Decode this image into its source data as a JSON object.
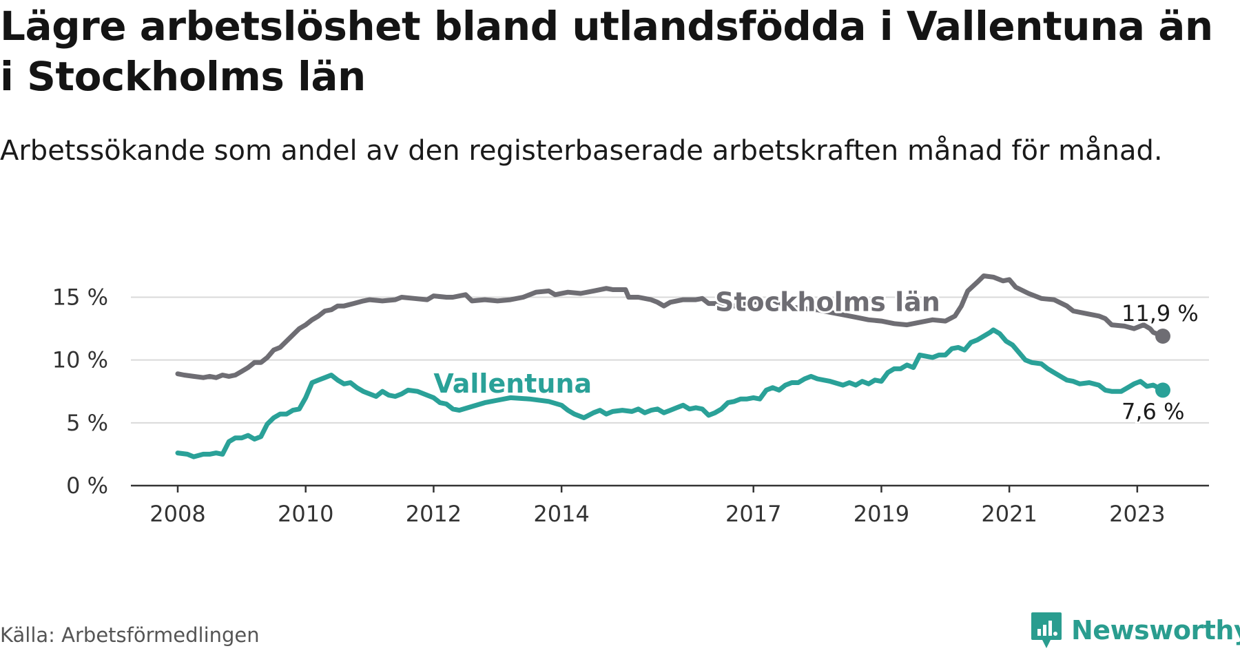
{
  "title": "Lägre arbetslöshet bland utlandsfödda i Vallentuna än i Stockholms län",
  "subtitle": "Arbetssökande som andel av den registerbaserade arbetskraften månad för månad.",
  "source": "Källa: Arbetsförmedlingen",
  "brand": {
    "name": "Newsworthy",
    "icon": "newsworthy-logo-icon",
    "color": "#2a9d8f"
  },
  "chart_data": {
    "type": "line",
    "title": "Lägre arbetslöshet bland utlandsfödda i Vallentuna än i Stockholms län",
    "xlabel": "",
    "ylabel": "",
    "xlim": [
      2008,
      2023.4
    ],
    "ylim": [
      0,
      17
    ],
    "grid": true,
    "legend": "inline labels",
    "x_ticks": [
      {
        "value": 2008,
        "label": "2008"
      },
      {
        "value": 2010,
        "label": "2010"
      },
      {
        "value": 2012,
        "label": "2012"
      },
      {
        "value": 2014,
        "label": "2014"
      },
      {
        "value": 2017,
        "label": "2017"
      },
      {
        "value": 2019,
        "label": "2019"
      },
      {
        "value": 2021,
        "label": "2021"
      },
      {
        "value": 2023,
        "label": "2023"
      }
    ],
    "y_ticks": [
      {
        "value": 0,
        "label": "0 %"
      },
      {
        "value": 5,
        "label": "5 %"
      },
      {
        "value": 10,
        "label": "10 %"
      },
      {
        "value": 15,
        "label": "15 %"
      }
    ],
    "series": [
      {
        "name": "Stockholms län",
        "color": "#6e6d73",
        "label_x": 2016.4,
        "label_y": 13.9,
        "end_label": "11,9 %",
        "points": [
          [
            2008.0,
            8.9
          ],
          [
            2008.1,
            8.8
          ],
          [
            2008.25,
            8.7
          ],
          [
            2008.4,
            8.6
          ],
          [
            2008.5,
            8.7
          ],
          [
            2008.6,
            8.6
          ],
          [
            2008.7,
            8.8
          ],
          [
            2008.8,
            8.7
          ],
          [
            2008.9,
            8.8
          ],
          [
            2009.0,
            9.1
          ],
          [
            2009.1,
            9.4
          ],
          [
            2009.2,
            9.8
          ],
          [
            2009.3,
            9.8
          ],
          [
            2009.4,
            10.2
          ],
          [
            2009.5,
            10.8
          ],
          [
            2009.6,
            11.0
          ],
          [
            2009.7,
            11.5
          ],
          [
            2009.8,
            12.0
          ],
          [
            2009.9,
            12.5
          ],
          [
            2010.0,
            12.8
          ],
          [
            2010.1,
            13.2
          ],
          [
            2010.2,
            13.5
          ],
          [
            2010.3,
            13.9
          ],
          [
            2010.4,
            14.0
          ],
          [
            2010.5,
            14.3
          ],
          [
            2010.6,
            14.3
          ],
          [
            2010.75,
            14.5
          ],
          [
            2010.9,
            14.7
          ],
          [
            2011.0,
            14.8
          ],
          [
            2011.2,
            14.7
          ],
          [
            2011.4,
            14.8
          ],
          [
            2011.5,
            15.0
          ],
          [
            2011.7,
            14.9
          ],
          [
            2011.9,
            14.8
          ],
          [
            2012.0,
            15.1
          ],
          [
            2012.2,
            15.0
          ],
          [
            2012.3,
            15.0
          ],
          [
            2012.5,
            15.2
          ],
          [
            2012.6,
            14.7
          ],
          [
            2012.8,
            14.8
          ],
          [
            2013.0,
            14.7
          ],
          [
            2013.2,
            14.8
          ],
          [
            2013.4,
            15.0
          ],
          [
            2013.6,
            15.4
          ],
          [
            2013.8,
            15.5
          ],
          [
            2013.9,
            15.2
          ],
          [
            2014.1,
            15.4
          ],
          [
            2014.3,
            15.3
          ],
          [
            2014.5,
            15.5
          ],
          [
            2014.7,
            15.7
          ],
          [
            2014.8,
            15.6
          ],
          [
            2015.0,
            15.6
          ],
          [
            2015.05,
            15.0
          ],
          [
            2015.2,
            15.0
          ],
          [
            2015.4,
            14.8
          ],
          [
            2015.5,
            14.6
          ],
          [
            2015.6,
            14.3
          ],
          [
            2015.7,
            14.6
          ],
          [
            2015.9,
            14.8
          ],
          [
            2016.1,
            14.8
          ],
          [
            2016.2,
            14.9
          ],
          [
            2016.3,
            14.5
          ],
          [
            2016.5,
            14.5
          ],
          [
            2016.7,
            14.3
          ],
          [
            2016.8,
            14.4
          ],
          [
            2017.0,
            14.6
          ],
          [
            2017.1,
            14.7
          ],
          [
            2017.2,
            14.6
          ],
          [
            2017.3,
            14.8
          ],
          [
            2017.4,
            14.5
          ],
          [
            2017.6,
            14.2
          ],
          [
            2017.8,
            14.1
          ],
          [
            2017.9,
            14.0
          ],
          [
            2018.0,
            14.0
          ],
          [
            2018.2,
            13.8
          ],
          [
            2018.4,
            13.6
          ],
          [
            2018.6,
            13.4
          ],
          [
            2018.8,
            13.2
          ],
          [
            2019.0,
            13.1
          ],
          [
            2019.2,
            12.9
          ],
          [
            2019.4,
            12.8
          ],
          [
            2019.6,
            13.0
          ],
          [
            2019.8,
            13.2
          ],
          [
            2020.0,
            13.1
          ],
          [
            2020.15,
            13.5
          ],
          [
            2020.25,
            14.3
          ],
          [
            2020.35,
            15.5
          ],
          [
            2020.5,
            16.2
          ],
          [
            2020.6,
            16.7
          ],
          [
            2020.75,
            16.6
          ],
          [
            2020.9,
            16.3
          ],
          [
            2021.0,
            16.4
          ],
          [
            2021.1,
            15.8
          ],
          [
            2021.3,
            15.3
          ],
          [
            2021.5,
            14.9
          ],
          [
            2021.7,
            14.8
          ],
          [
            2021.9,
            14.3
          ],
          [
            2022.0,
            13.9
          ],
          [
            2022.2,
            13.7
          ],
          [
            2022.4,
            13.5
          ],
          [
            2022.5,
            13.3
          ],
          [
            2022.6,
            12.8
          ],
          [
            2022.8,
            12.7
          ],
          [
            2022.95,
            12.5
          ],
          [
            2023.1,
            12.8
          ],
          [
            2023.2,
            12.5
          ],
          [
            2023.25,
            12.2
          ],
          [
            2023.4,
            11.9
          ]
        ]
      },
      {
        "name": "Vallentuna",
        "color": "#2aa198",
        "label_x": 2012.0,
        "label_y": 7.4,
        "end_label": "7,6 %",
        "points": [
          [
            2008.0,
            2.6
          ],
          [
            2008.15,
            2.5
          ],
          [
            2008.25,
            2.3
          ],
          [
            2008.4,
            2.5
          ],
          [
            2008.5,
            2.5
          ],
          [
            2008.6,
            2.6
          ],
          [
            2008.7,
            2.5
          ],
          [
            2008.8,
            3.5
          ],
          [
            2008.9,
            3.8
          ],
          [
            2009.0,
            3.8
          ],
          [
            2009.1,
            4.0
          ],
          [
            2009.2,
            3.7
          ],
          [
            2009.3,
            3.9
          ],
          [
            2009.4,
            4.9
          ],
          [
            2009.5,
            5.4
          ],
          [
            2009.6,
            5.7
          ],
          [
            2009.7,
            5.7
          ],
          [
            2009.8,
            6.0
          ],
          [
            2009.9,
            6.1
          ],
          [
            2010.0,
            7.0
          ],
          [
            2010.1,
            8.2
          ],
          [
            2010.2,
            8.4
          ],
          [
            2010.3,
            8.6
          ],
          [
            2010.4,
            8.8
          ],
          [
            2010.5,
            8.4
          ],
          [
            2010.6,
            8.1
          ],
          [
            2010.7,
            8.2
          ],
          [
            2010.8,
            7.8
          ],
          [
            2010.9,
            7.5
          ],
          [
            2011.0,
            7.3
          ],
          [
            2011.1,
            7.1
          ],
          [
            2011.2,
            7.5
          ],
          [
            2011.3,
            7.2
          ],
          [
            2011.4,
            7.1
          ],
          [
            2011.5,
            7.3
          ],
          [
            2011.6,
            7.6
          ],
          [
            2011.75,
            7.5
          ],
          [
            2011.9,
            7.2
          ],
          [
            2012.0,
            7.0
          ],
          [
            2012.1,
            6.6
          ],
          [
            2012.2,
            6.5
          ],
          [
            2012.3,
            6.1
          ],
          [
            2012.4,
            6.0
          ],
          [
            2012.6,
            6.3
          ],
          [
            2012.8,
            6.6
          ],
          [
            2013.0,
            6.8
          ],
          [
            2013.2,
            7.0
          ],
          [
            2013.5,
            6.9
          ],
          [
            2013.8,
            6.7
          ],
          [
            2014.0,
            6.4
          ],
          [
            2014.1,
            6.0
          ],
          [
            2014.2,
            5.7
          ],
          [
            2014.35,
            5.4
          ],
          [
            2014.5,
            5.8
          ],
          [
            2014.6,
            6.0
          ],
          [
            2014.7,
            5.7
          ],
          [
            2014.8,
            5.9
          ],
          [
            2014.95,
            6.0
          ],
          [
            2015.1,
            5.9
          ],
          [
            2015.2,
            6.1
          ],
          [
            2015.3,
            5.8
          ],
          [
            2015.4,
            6.0
          ],
          [
            2015.5,
            6.1
          ],
          [
            2015.6,
            5.8
          ],
          [
            2015.7,
            6.0
          ],
          [
            2015.8,
            6.2
          ],
          [
            2015.9,
            6.4
          ],
          [
            2016.0,
            6.1
          ],
          [
            2016.1,
            6.2
          ],
          [
            2016.2,
            6.1
          ],
          [
            2016.3,
            5.6
          ],
          [
            2016.4,
            5.8
          ],
          [
            2016.5,
            6.1
          ],
          [
            2016.6,
            6.6
          ],
          [
            2016.7,
            6.7
          ],
          [
            2016.8,
            6.9
          ],
          [
            2016.9,
            6.9
          ],
          [
            2017.0,
            7.0
          ],
          [
            2017.1,
            6.9
          ],
          [
            2017.2,
            7.6
          ],
          [
            2017.3,
            7.8
          ],
          [
            2017.4,
            7.6
          ],
          [
            2017.5,
            8.0
          ],
          [
            2017.6,
            8.2
          ],
          [
            2017.7,
            8.2
          ],
          [
            2017.8,
            8.5
          ],
          [
            2017.9,
            8.7
          ],
          [
            2018.0,
            8.5
          ],
          [
            2018.2,
            8.3
          ],
          [
            2018.4,
            8.0
          ],
          [
            2018.5,
            8.2
          ],
          [
            2018.6,
            8.0
          ],
          [
            2018.7,
            8.3
          ],
          [
            2018.8,
            8.1
          ],
          [
            2018.9,
            8.4
          ],
          [
            2019.0,
            8.3
          ],
          [
            2019.1,
            9.0
          ],
          [
            2019.2,
            9.3
          ],
          [
            2019.3,
            9.3
          ],
          [
            2019.4,
            9.6
          ],
          [
            2019.5,
            9.4
          ],
          [
            2019.6,
            10.4
          ],
          [
            2019.7,
            10.3
          ],
          [
            2019.8,
            10.2
          ],
          [
            2019.9,
            10.4
          ],
          [
            2020.0,
            10.4
          ],
          [
            2020.1,
            10.9
          ],
          [
            2020.2,
            11.0
          ],
          [
            2020.3,
            10.8
          ],
          [
            2020.4,
            11.4
          ],
          [
            2020.5,
            11.6
          ],
          [
            2020.6,
            11.9
          ],
          [
            2020.7,
            12.2
          ],
          [
            2020.75,
            12.4
          ],
          [
            2020.85,
            12.1
          ],
          [
            2020.95,
            11.5
          ],
          [
            2021.05,
            11.2
          ],
          [
            2021.15,
            10.6
          ],
          [
            2021.25,
            10.0
          ],
          [
            2021.35,
            9.8
          ],
          [
            2021.5,
            9.7
          ],
          [
            2021.6,
            9.3
          ],
          [
            2021.7,
            9.0
          ],
          [
            2021.8,
            8.7
          ],
          [
            2021.9,
            8.4
          ],
          [
            2022.0,
            8.3
          ],
          [
            2022.1,
            8.1
          ],
          [
            2022.25,
            8.2
          ],
          [
            2022.4,
            8.0
          ],
          [
            2022.5,
            7.6
          ],
          [
            2022.6,
            7.5
          ],
          [
            2022.75,
            7.5
          ],
          [
            2022.85,
            7.8
          ],
          [
            2022.95,
            8.1
          ],
          [
            2023.05,
            8.3
          ],
          [
            2023.15,
            7.9
          ],
          [
            2023.25,
            8.0
          ],
          [
            2023.4,
            7.6
          ]
        ]
      }
    ]
  }
}
